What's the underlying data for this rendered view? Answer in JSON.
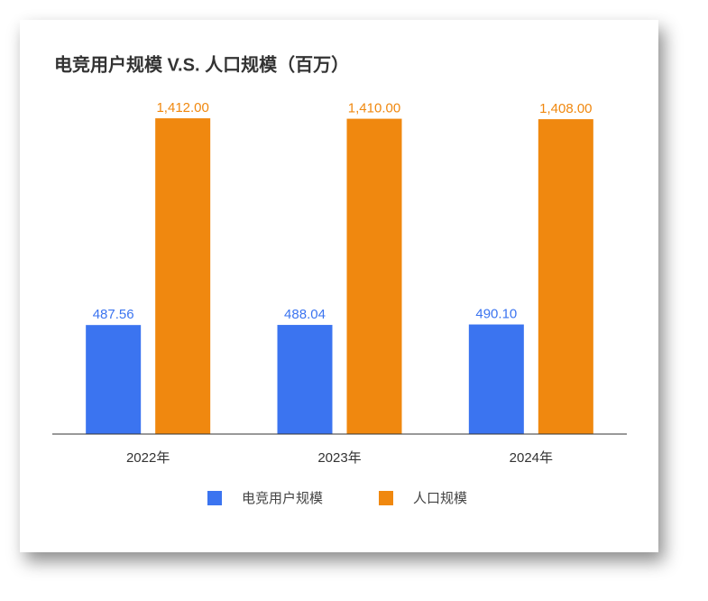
{
  "chart_data": {
    "type": "bar",
    "title": "电竞用户规模 V.S. 人口规模（百万）",
    "categories": [
      "2022年",
      "2023年",
      "2024年"
    ],
    "series": [
      {
        "name": "电竞用户规模",
        "color": "#3b74f0",
        "values": [
          487.56,
          488.04,
          490.1
        ],
        "value_labels": [
          "487.56",
          "488.04",
          "490.10"
        ]
      },
      {
        "name": "人口规模",
        "color": "#f0880f",
        "values": [
          1412,
          1410,
          1408
        ],
        "value_labels": [
          "1,412.00",
          "1,410.00",
          "1,408.00"
        ]
      }
    ],
    "ylim": [
      0,
      1600
    ]
  }
}
